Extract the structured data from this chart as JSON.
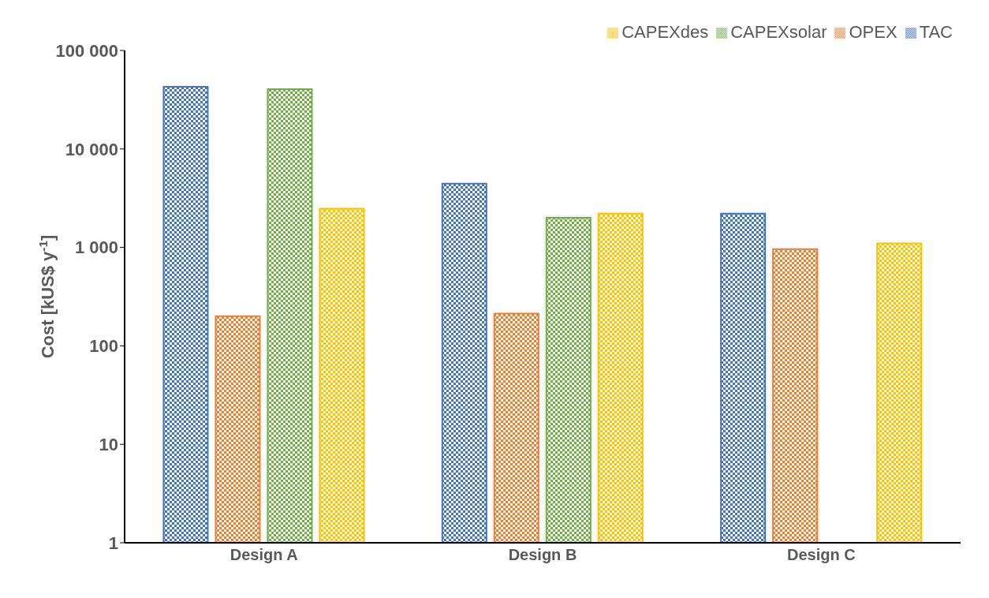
{
  "chart_data": {
    "type": "bar",
    "ylabel": "Cost [kUS$ y$^{-1}$]",
    "categories": [
      "Design A",
      "Design B",
      "Design C"
    ],
    "series": [
      {
        "name": "TAC",
        "color": "#4472c4",
        "values": [
          42700,
          4450,
          2200
        ]
      },
      {
        "name": "OPEX",
        "color": "#ed7d31",
        "values": [
          200,
          213,
          960
        ]
      },
      {
        "name": "CAPEXsolar",
        "color": "#70ad47",
        "values": [
          40500,
          2000,
          null
        ]
      },
      {
        "name": "CAPEXdes",
        "color": "#ffc000",
        "values": [
          2470,
          2200,
          1100
        ]
      }
    ],
    "log": "y",
    "ylim": [
      1,
      100000
    ],
    "yticks": [
      1,
      10,
      100,
      {
        "value": 1000,
        "label": "1 000"
      },
      {
        "value": 10000,
        "label": "10 000"
      },
      {
        "value": 100000,
        "label": "100 000"
      }
    ],
    "grid": false,
    "legend": "top right"
  }
}
